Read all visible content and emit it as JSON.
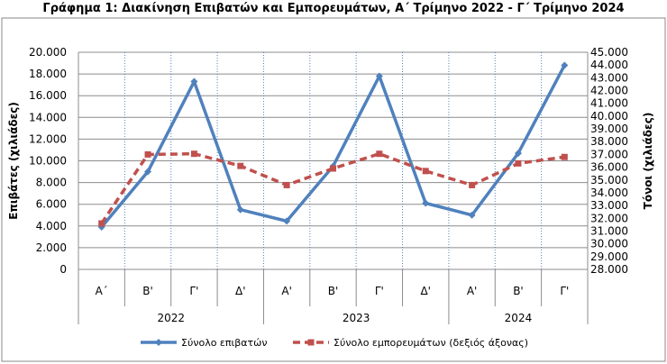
{
  "title": "Γράφημα 1: Διακίνηση Επιβατών και Εμπορευμάτων, Α΄ Τρίμηνο 2022 - Γ΄ Τρίμηνο 2024",
  "chart_data": {
    "type": "line",
    "categories": [
      "Α΄",
      "Β'",
      "Γ'",
      "Δ'",
      "Α'",
      "Β'",
      "Γ'",
      "Δ'",
      "Α'",
      "Β'",
      "Γ'"
    ],
    "groups": [
      {
        "label": "2022",
        "count": 4
      },
      {
        "label": "2023",
        "count": 4
      },
      {
        "label": "2024",
        "count": 3
      }
    ],
    "series": [
      {
        "name": "Σύνολο επιβατών",
        "axis": "left",
        "color": "#4f81bd",
        "style": "solid",
        "values": [
          3900,
          9000,
          17300,
          5500,
          4450,
          9500,
          17800,
          6100,
          5000,
          10700,
          18800
        ]
      },
      {
        "name": "Σύνολο εμπορευμάτων (δεξιός άξονας)",
        "axis": "right",
        "color": "#c0504d",
        "style": "dashed",
        "values": [
          31600,
          37000,
          37050,
          36100,
          34600,
          35900,
          37050,
          35700,
          34600,
          36300,
          36800
        ]
      }
    ],
    "ylabel": "Επιβάτες  (χιλιάδες)",
    "y2label": "Τόνοι  (χιλιάδες)",
    "ylim": [
      0,
      20000
    ],
    "y2lim": [
      28000,
      45000
    ],
    "yticks": [
      "0",
      "2.000",
      "4.000",
      "6.000",
      "8.000",
      "10.000",
      "12.000",
      "14.000",
      "16.000",
      "18.000",
      "20.000"
    ],
    "y2ticks": [
      "28.000",
      "29.000",
      "30.000",
      "31.000",
      "32.000",
      "33.000",
      "34.000",
      "35.000",
      "36.000",
      "37.000",
      "38.000",
      "39.000",
      "40.000",
      "41.000",
      "42.000",
      "43.000",
      "44.000",
      "45.000"
    ],
    "grid": true,
    "legend_position": "bottom"
  }
}
